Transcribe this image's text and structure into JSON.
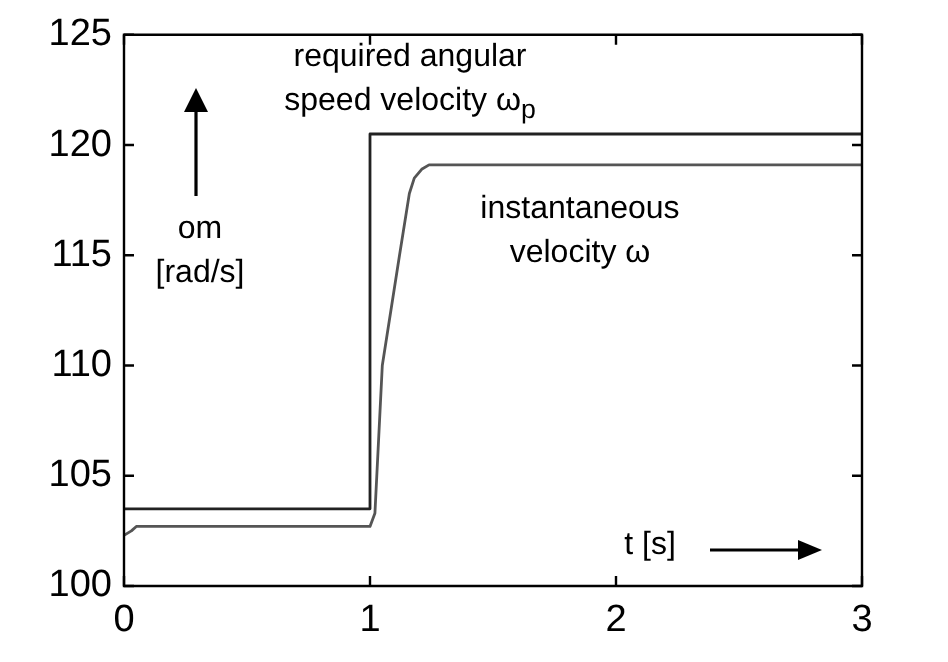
{
  "chart_data": {
    "type": "line",
    "xlabel": "t [s]",
    "ylabel": "om [rad/s]",
    "xlim": [
      0,
      3
    ],
    "ylim": [
      100,
      125
    ],
    "xticks": [
      0,
      1,
      2,
      3
    ],
    "yticks": [
      100,
      105,
      110,
      115,
      120,
      125
    ],
    "series": [
      {
        "name": "required angular speed velocity ω$_{p}$",
        "color": "#222222",
        "x": [
          0,
          1,
          1,
          3
        ],
        "values": [
          103.5,
          103.5,
          120.5,
          120.5
        ]
      },
      {
        "name": "instantaneous velocity ω",
        "color": "#555555",
        "x": [
          0,
          0.03,
          0.05,
          1.0,
          1.02,
          1.05,
          1.12,
          1.16,
          1.18,
          1.21,
          1.24,
          3
        ],
        "values": [
          102.3,
          102.5,
          102.7,
          102.7,
          103.3,
          110,
          115,
          117.8,
          118.5,
          118.9,
          119.1,
          119.1
        ]
      }
    ]
  }
}
